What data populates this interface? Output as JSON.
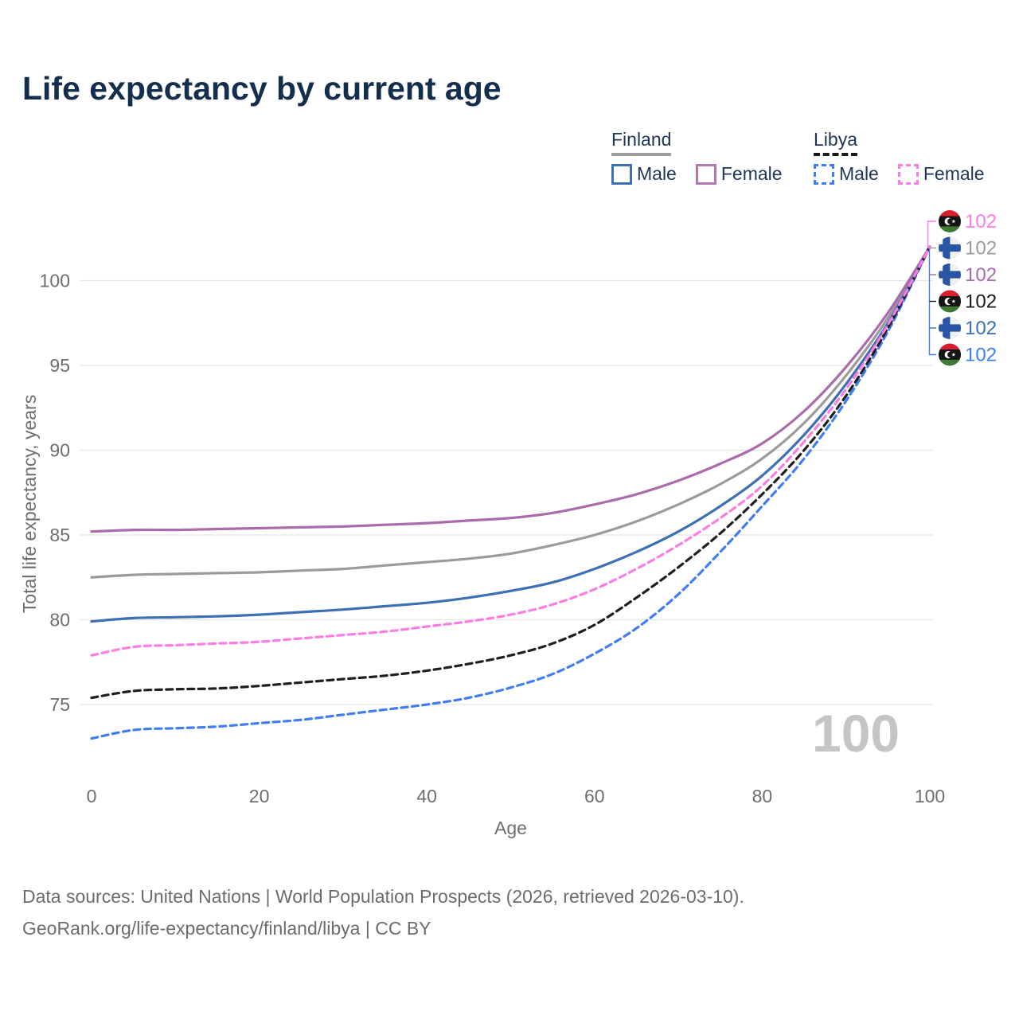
{
  "title": "Life expectancy by current age",
  "legend": {
    "groups": [
      {
        "name": "Finland",
        "line_style": "solid",
        "line_color": "#9e9e9e",
        "items": [
          {
            "label": "Male",
            "color": "#3d6fb5",
            "dashed": false
          },
          {
            "label": "Female",
            "color": "#b279ae",
            "dashed": false
          }
        ]
      },
      {
        "name": "Libya",
        "line_style": "dashed",
        "line_color": "#1a1a1a",
        "items": [
          {
            "label": "Male",
            "color": "#3f7df0",
            "dashed": true
          },
          {
            "label": "Female",
            "color": "#fb7ce3",
            "dashed": true
          }
        ]
      }
    ]
  },
  "chart_data": {
    "type": "line",
    "title": "Life expectancy by current age",
    "xlabel": "Age",
    "ylabel": "Total life expectancy, years",
    "x": [
      0,
      5,
      10,
      15,
      20,
      25,
      30,
      35,
      40,
      45,
      50,
      55,
      60,
      65,
      70,
      75,
      80,
      85,
      90,
      95,
      100
    ],
    "xticks": [
      0,
      20,
      40,
      60,
      80,
      100
    ],
    "yticks": [
      75,
      80,
      85,
      90,
      95,
      100
    ],
    "xlim": [
      0,
      100
    ],
    "ylim": [
      72.5,
      102
    ],
    "grid": true,
    "legend_position": "top-right",
    "series": [
      {
        "name": "Finland",
        "country": "Finland",
        "sex": "Both",
        "color": "#9b9b9b",
        "dash": false,
        "values": [
          82.5,
          82.65,
          82.7,
          82.75,
          82.8,
          82.9,
          83.0,
          83.2,
          83.4,
          83.6,
          83.9,
          84.4,
          85.0,
          85.8,
          86.8,
          88.0,
          89.5,
          91.6,
          94.4,
          97.8,
          102
        ]
      },
      {
        "name": "Finland Female",
        "country": "Finland",
        "sex": "Female",
        "color": "#ab6aab",
        "dash": false,
        "values": [
          85.2,
          85.3,
          85.3,
          85.35,
          85.4,
          85.45,
          85.5,
          85.6,
          85.7,
          85.85,
          86.0,
          86.3,
          86.8,
          87.4,
          88.2,
          89.2,
          90.4,
          92.3,
          94.9,
          98.1,
          102
        ]
      },
      {
        "name": "Finland Male",
        "country": "Finland",
        "sex": "Male",
        "color": "#3d6fb5",
        "dash": false,
        "values": [
          79.9,
          80.1,
          80.15,
          80.2,
          80.3,
          80.45,
          80.6,
          80.8,
          81.0,
          81.3,
          81.7,
          82.2,
          83.0,
          84.0,
          85.2,
          86.7,
          88.5,
          90.9,
          93.9,
          97.5,
          102
        ]
      },
      {
        "name": "Libya Male",
        "country": "Libya",
        "sex": "Male",
        "color": "#3f7df0",
        "dash": true,
        "values": [
          73.0,
          73.5,
          73.6,
          73.7,
          73.9,
          74.1,
          74.4,
          74.7,
          75.0,
          75.4,
          76.0,
          76.8,
          78.0,
          79.5,
          81.5,
          84.0,
          86.7,
          89.5,
          92.9,
          97.0,
          102
        ]
      },
      {
        "name": "Libya",
        "country": "Libya",
        "sex": "Both",
        "color": "#1f1f1f",
        "dash": true,
        "values": [
          75.4,
          75.8,
          75.9,
          75.95,
          76.1,
          76.3,
          76.5,
          76.7,
          77.0,
          77.4,
          77.9,
          78.6,
          79.7,
          81.3,
          83.1,
          85.1,
          87.4,
          90.0,
          93.2,
          97.2,
          102
        ]
      },
      {
        "name": "Libya Female",
        "country": "Libya",
        "sex": "Female",
        "color": "#fb7ce3",
        "dash": true,
        "values": [
          77.9,
          78.4,
          78.5,
          78.6,
          78.7,
          78.9,
          79.1,
          79.3,
          79.6,
          79.9,
          80.3,
          80.9,
          81.8,
          83.0,
          84.4,
          86.0,
          87.9,
          90.5,
          93.6,
          97.4,
          102
        ]
      }
    ],
    "end_labels": [
      {
        "value": "102",
        "flag": "libya",
        "series": "Libya Female",
        "color": "#fb7ce3"
      },
      {
        "value": "102",
        "flag": "finland",
        "series": "Finland",
        "color": "#9b9b9b"
      },
      {
        "value": "102",
        "flag": "finland",
        "series": "Finland Female",
        "color": "#ab6aab"
      },
      {
        "value": "102",
        "flag": "libya",
        "series": "Libya",
        "color": "#1a1a1a"
      },
      {
        "value": "102",
        "flag": "finland",
        "series": "Finland Male",
        "color": "#3d6fb5"
      },
      {
        "value": "102",
        "flag": "libya",
        "series": "Libya Male",
        "color": "#3f7df0"
      }
    ],
    "watermark": "100"
  },
  "colors": {
    "title": "#142f4e",
    "axis_text": "#6e6e6e",
    "gridline": "#e5e5e5",
    "watermark": "#c5c5c5",
    "finland_flag_blue": "#2a55a4",
    "libya_flag_red": "#d81f2f",
    "libya_flag_green": "#3f7a33"
  },
  "footer": {
    "line1": "Data sources: United Nations | World Population Prospects (2026, retrieved 2026-03-10).",
    "line2": "GeoRank.org/life-expectancy/finland/libya | CC BY"
  }
}
